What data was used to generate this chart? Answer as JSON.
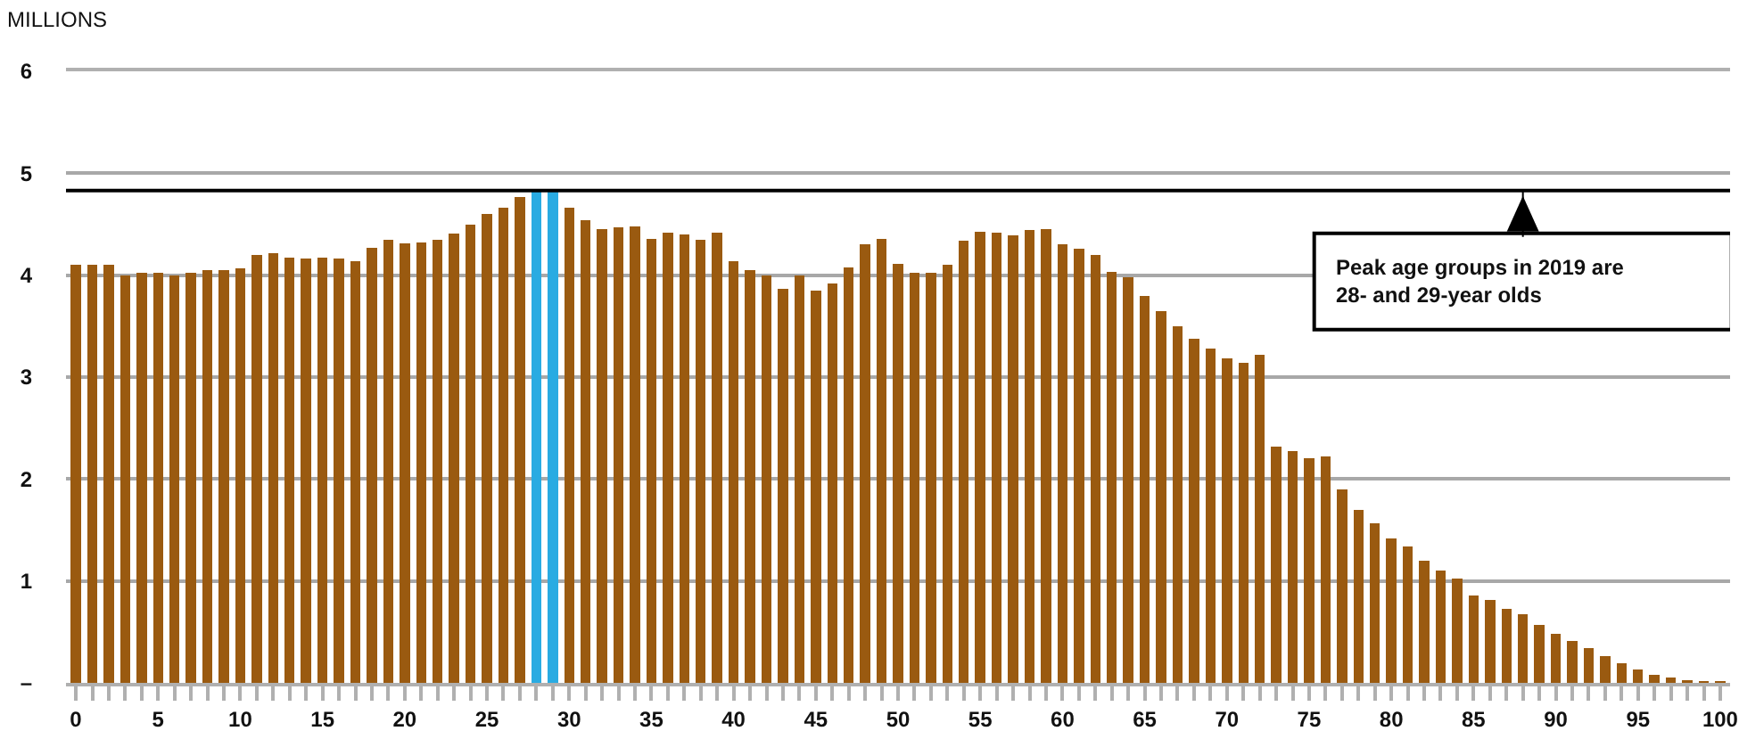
{
  "chart_data": {
    "type": "bar",
    "ylabel": "MILLIONS",
    "x": [
      0,
      1,
      2,
      3,
      4,
      5,
      6,
      7,
      8,
      9,
      10,
      11,
      12,
      13,
      14,
      15,
      16,
      17,
      18,
      19,
      20,
      21,
      22,
      23,
      24,
      25,
      26,
      27,
      28,
      29,
      30,
      31,
      32,
      33,
      34,
      35,
      36,
      37,
      38,
      39,
      40,
      41,
      42,
      43,
      44,
      45,
      46,
      47,
      48,
      49,
      50,
      51,
      52,
      53,
      54,
      55,
      56,
      57,
      58,
      59,
      60,
      61,
      62,
      63,
      64,
      65,
      66,
      67,
      68,
      69,
      70,
      71,
      72,
      73,
      74,
      75,
      76,
      77,
      78,
      79,
      80,
      81,
      82,
      83,
      84,
      85,
      86,
      87,
      88,
      89,
      90,
      91,
      92,
      93,
      94,
      95,
      96,
      97,
      98,
      99,
      100
    ],
    "values": [
      4.1,
      4.1,
      4.1,
      4.0,
      4.02,
      4.02,
      4.0,
      4.02,
      4.05,
      4.05,
      4.07,
      4.2,
      4.22,
      4.17,
      4.16,
      4.17,
      4.16,
      4.14,
      4.27,
      4.35,
      4.31,
      4.32,
      4.35,
      4.41,
      4.5,
      4.6,
      4.66,
      4.77,
      4.83,
      4.83,
      4.66,
      4.54,
      4.45,
      4.47,
      4.48,
      4.36,
      4.42,
      4.4,
      4.35,
      4.42,
      4.14,
      4.05,
      4.0,
      3.87,
      4.0,
      3.85,
      3.92,
      4.08,
      4.3,
      4.36,
      4.11,
      4.02,
      4.02,
      4.1,
      4.34,
      4.43,
      4.42,
      4.39,
      4.44,
      4.45,
      4.3,
      4.26,
      4.2,
      4.03,
      3.98,
      3.8,
      3.65,
      3.5,
      3.38,
      3.28,
      3.18,
      3.14,
      3.22,
      2.32,
      2.27,
      2.2,
      2.22,
      1.9,
      1.7,
      1.57,
      1.42,
      1.34,
      1.2,
      1.1,
      1.02,
      0.86,
      0.81,
      0.73,
      0.67,
      0.57,
      0.48,
      0.41,
      0.34,
      0.26,
      0.19,
      0.13,
      0.08,
      0.05,
      0.03,
      0.02,
      0.02
    ],
    "colors": [
      "#9a5a10",
      "#9a5a10",
      "#9a5a10",
      "#9a5a10",
      "#9a5a10",
      "#9a5a10",
      "#9a5a10",
      "#9a5a10",
      "#9a5a10",
      "#9a5a10",
      "#9a5a10",
      "#9a5a10",
      "#9a5a10",
      "#9a5a10",
      "#9a5a10",
      "#9a5a10",
      "#9a5a10",
      "#9a5a10",
      "#9a5a10",
      "#9a5a10",
      "#9a5a10",
      "#9a5a10",
      "#9a5a10",
      "#9a5a10",
      "#9a5a10",
      "#9a5a10",
      "#9a5a10",
      "#9a5a10",
      "#29abe2",
      "#29abe2",
      "#9a5a10",
      "#9a5a10",
      "#9a5a10",
      "#9a5a10",
      "#9a5a10",
      "#9a5a10",
      "#9a5a10",
      "#9a5a10",
      "#9a5a10",
      "#9a5a10",
      "#9a5a10",
      "#9a5a10",
      "#9a5a10",
      "#9a5a10",
      "#9a5a10",
      "#9a5a10",
      "#9a5a10",
      "#9a5a10",
      "#9a5a10",
      "#9a5a10",
      "#9a5a10",
      "#9a5a10",
      "#9a5a10",
      "#9a5a10",
      "#9a5a10",
      "#9a5a10",
      "#9a5a10",
      "#9a5a10",
      "#9a5a10",
      "#9a5a10",
      "#9a5a10",
      "#9a5a10",
      "#9a5a10",
      "#9a5a10",
      "#9a5a10",
      "#9a5a10",
      "#9a5a10",
      "#9a5a10",
      "#9a5a10",
      "#9a5a10",
      "#9a5a10",
      "#9a5a10",
      "#9a5a10",
      "#9a5a10",
      "#9a5a10",
      "#9a5a10",
      "#9a5a10",
      "#9a5a10",
      "#9a5a10",
      "#9a5a10",
      "#9a5a10",
      "#9a5a10",
      "#9a5a10",
      "#9a5a10",
      "#9a5a10",
      "#9a5a10",
      "#9a5a10",
      "#9a5a10",
      "#9a5a10",
      "#9a5a10",
      "#9a5a10",
      "#9a5a10",
      "#9a5a10",
      "#9a5a10",
      "#9a5a10",
      "#9a5a10",
      "#9a5a10",
      "#9a5a10",
      "#9a5a10",
      "#9a5a10",
      "#9a5a10"
    ],
    "xlim": [
      -0.6,
      100.6
    ],
    "xticks": [
      0,
      {
        "value": 1,
        "label": null
      },
      {
        "value": 2,
        "label": null
      },
      {
        "value": 3,
        "label": null
      },
      {
        "value": 4,
        "label": null
      },
      5,
      {
        "value": 6,
        "label": null
      },
      {
        "value": 7,
        "label": null
      },
      {
        "value": 8,
        "label": null
      },
      {
        "value": 9,
        "label": null
      },
      10,
      {
        "value": 11,
        "label": null
      },
      {
        "value": 12,
        "label": null
      },
      {
        "value": 13,
        "label": null
      },
      {
        "value": 14,
        "label": null
      },
      15,
      {
        "value": 16,
        "label": null
      },
      {
        "value": 17,
        "label": null
      },
      {
        "value": 18,
        "label": null
      },
      {
        "value": 19,
        "label": null
      },
      20,
      {
        "value": 21,
        "label": null
      },
      {
        "value": 22,
        "label": null
      },
      {
        "value": 23,
        "label": null
      },
      {
        "value": 24,
        "label": null
      },
      25,
      {
        "value": 26,
        "label": null
      },
      {
        "value": 27,
        "label": null
      },
      {
        "value": 28,
        "label": null
      },
      {
        "value": 29,
        "label": null
      },
      30,
      {
        "value": 31,
        "label": null
      },
      {
        "value": 32,
        "label": null
      },
      {
        "value": 33,
        "label": null
      },
      {
        "value": 34,
        "label": null
      },
      35,
      {
        "value": 36,
        "label": null
      },
      {
        "value": 37,
        "label": null
      },
      {
        "value": 38,
        "label": null
      },
      {
        "value": 39,
        "label": null
      },
      40,
      {
        "value": 41,
        "label": null
      },
      {
        "value": 42,
        "label": null
      },
      {
        "value": 43,
        "label": null
      },
      {
        "value": 44,
        "label": null
      },
      45,
      {
        "value": 46,
        "label": null
      },
      {
        "value": 47,
        "label": null
      },
      {
        "value": 48,
        "label": null
      },
      {
        "value": 49,
        "label": null
      },
      50,
      {
        "value": 51,
        "label": null
      },
      {
        "value": 52,
        "label": null
      },
      {
        "value": 53,
        "label": null
      },
      {
        "value": 54,
        "label": null
      },
      55,
      {
        "value": 56,
        "label": null
      },
      {
        "value": 57,
        "label": null
      },
      {
        "value": 58,
        "label": null
      },
      {
        "value": 59,
        "label": null
      },
      60,
      {
        "value": 61,
        "label": null
      },
      {
        "value": 62,
        "label": null
      },
      {
        "value": 63,
        "label": null
      },
      {
        "value": 64,
        "label": null
      },
      65,
      {
        "value": 66,
        "label": null
      },
      {
        "value": 67,
        "label": null
      },
      {
        "value": 68,
        "label": null
      },
      {
        "value": 69,
        "label": null
      },
      70,
      {
        "value": 71,
        "label": null
      },
      {
        "value": 72,
        "label": null
      },
      {
        "value": 73,
        "label": null
      },
      {
        "value": 74,
        "label": null
      },
      75,
      {
        "value": 76,
        "label": null
      },
      {
        "value": 77,
        "label": null
      },
      {
        "value": 78,
        "label": null
      },
      {
        "value": 79,
        "label": null
      },
      80,
      {
        "value": 81,
        "label": null
      },
      {
        "value": 82,
        "label": null
      },
      {
        "value": 83,
        "label": null
      },
      {
        "value": 84,
        "label": null
      },
      85,
      {
        "value": 86,
        "label": null
      },
      {
        "value": 87,
        "label": null
      },
      {
        "value": 88,
        "label": null
      },
      {
        "value": 89,
        "label": null
      },
      90,
      {
        "value": 91,
        "label": null
      },
      {
        "value": 92,
        "label": null
      },
      {
        "value": 93,
        "label": null
      },
      {
        "value": 94,
        "label": null
      },
      95,
      {
        "value": 96,
        "label": null
      },
      {
        "value": 97,
        "label": null
      },
      {
        "value": 98,
        "label": null
      },
      {
        "value": 99,
        "label": null
      },
      100
    ],
    "ylim": [
      0,
      6
    ],
    "yticks": [
      {
        "value": 0,
        "label": "–"
      },
      1,
      2,
      3,
      4,
      5,
      6
    ],
    "grid": "y",
    "ref_lines": [
      {
        "axis": "y",
        "value": 4.83,
        "color": "#000000"
      }
    ],
    "annotations": [
      {
        "text": "Peak age groups in 2019 are\n28- and 29-year olds",
        "x": 88,
        "y": 4.83
      }
    ]
  }
}
